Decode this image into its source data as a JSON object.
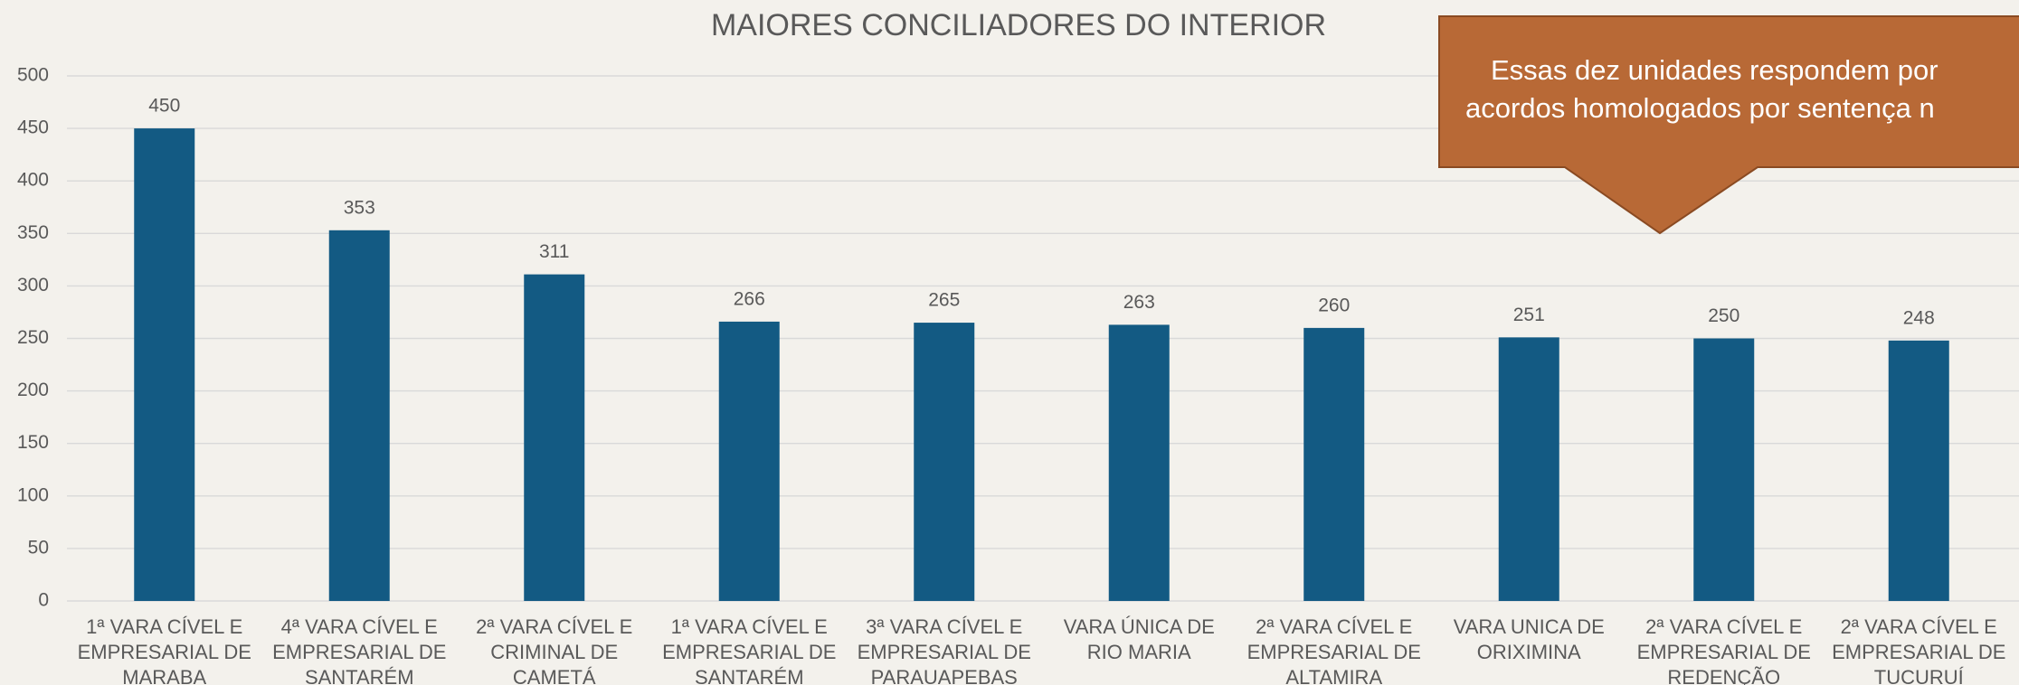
{
  "chart_data": {
    "type": "bar",
    "title": "MAIORES CONCILIADORES DO INTERIOR",
    "categories": [
      [
        "1ª VARA CÍVEL E",
        "EMPRESARIAL DE",
        "MARABA"
      ],
      [
        "4ª VARA CÍVEL E",
        "EMPRESARIAL DE",
        "SANTARÉM"
      ],
      [
        "2ª VARA CÍVEL E",
        "CRIMINAL DE",
        "CAMETÁ"
      ],
      [
        "1ª VARA CÍVEL E",
        "EMPRESARIAL DE",
        "SANTARÉM"
      ],
      [
        "3ª VARA CÍVEL E",
        "EMPRESARIAL DE",
        "PARAUAPEBAS"
      ],
      [
        "VARA ÚNICA DE",
        "RIO MARIA"
      ],
      [
        "2ª VARA CÍVEL E",
        "EMPRESARIAL DE",
        "ALTAMIRA"
      ],
      [
        "VARA UNICA DE",
        "ORIXIMINA"
      ],
      [
        "2ª VARA CÍVEL E",
        "EMPRESARIAL DE",
        "REDENÇÃO"
      ],
      [
        "2ª VARA CÍVEL E",
        "EMPRESARIAL DE",
        "TUCURUÍ"
      ]
    ],
    "values": [
      450,
      353,
      311,
      266,
      265,
      263,
      260,
      251,
      250,
      248
    ],
    "color": "#135a83",
    "ylim": [
      0,
      500
    ],
    "yticks": [
      0,
      50,
      100,
      150,
      200,
      250,
      300,
      350,
      400,
      450,
      500
    ],
    "grid": true,
    "annotation": [
      "Essas dez unidades respondem por",
      "acordos homologados por sentença n"
    ]
  }
}
